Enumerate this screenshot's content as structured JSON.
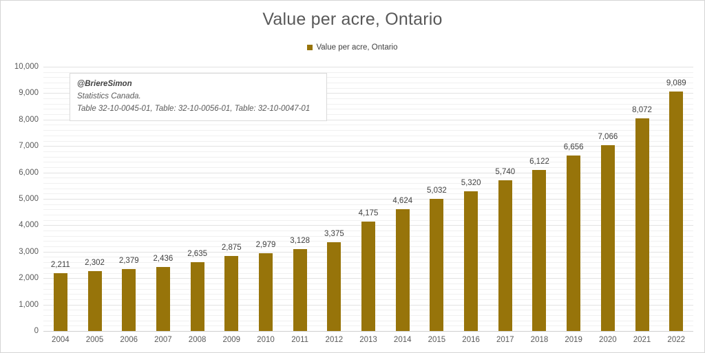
{
  "chart_data": {
    "type": "bar",
    "title": "Value per acre, Ontario",
    "legend": [
      "Value per acre, Ontario"
    ],
    "legend_position": "top",
    "categories": [
      "2004",
      "2005",
      "2006",
      "2007",
      "2008",
      "2009",
      "2010",
      "2011",
      "2012",
      "2013",
      "2014",
      "2015",
      "2016",
      "2017",
      "2018",
      "2019",
      "2020",
      "2021",
      "2022"
    ],
    "values": [
      2211,
      2302,
      2379,
      2436,
      2635,
      2875,
      2979,
      3128,
      3375,
      4175,
      4624,
      5032,
      5320,
      5740,
      6122,
      6656,
      7066,
      8072,
      9089
    ],
    "data_labels": [
      "2,211",
      "2,302",
      "2,379",
      "2,436",
      "2,635",
      "2,875",
      "2,979",
      "3,128",
      "3,375",
      "4,175",
      "4,624",
      "5,032",
      "5,320",
      "5,740",
      "6,122",
      "6,656",
      "7,066",
      "8,072",
      "9,089"
    ],
    "xlabel": "",
    "ylabel": "",
    "ylim": [
      0,
      10000
    ],
    "y_major_tick": 1000,
    "y_minor_gridline": 200,
    "y_tick_labels": [
      "0",
      "1,000",
      "2,000",
      "3,000",
      "4,000",
      "5,000",
      "6,000",
      "7,000",
      "8,000",
      "9,000",
      "10,000"
    ],
    "grid": true,
    "bar_color": "#97740A"
  },
  "annotation": {
    "line1": "@BriereSimon",
    "line2": "Statistics Canada.",
    "line3": "Table 32-10-0045-01, Table: 32-10-0056-01, Table: 32-10-0047-01"
  },
  "colors": {
    "title_text": "#595959",
    "axis_text": "#595959",
    "data_label_text": "#404040",
    "gridline_minor": "#F0F0F0",
    "gridline_major": "#E2E2E2",
    "axis_line": "#CFCFCF",
    "frame_border": "#D5D5D5",
    "background": "#FFFFFF"
  }
}
